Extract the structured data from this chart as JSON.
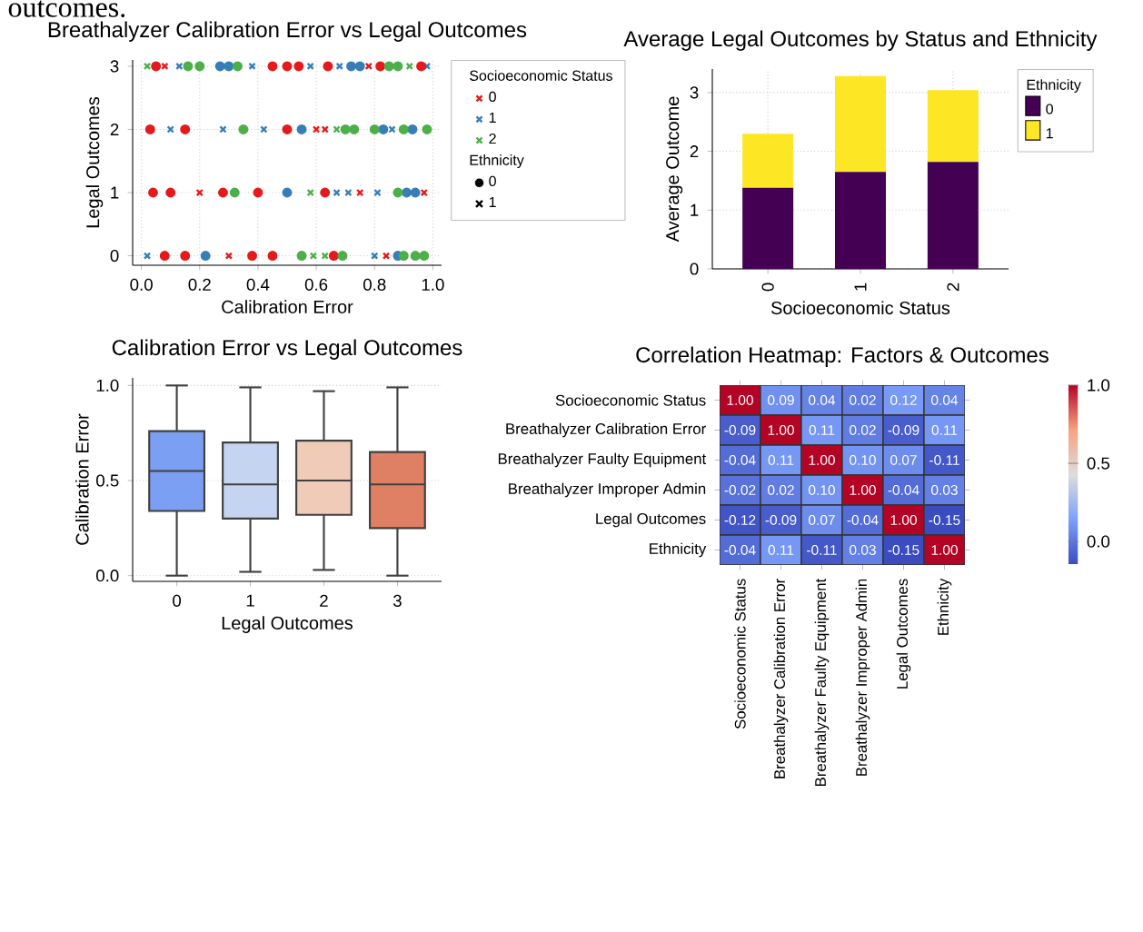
{
  "chart_data": [
    {
      "type": "scatter",
      "title": "Breathalyzer Calibration Error vs Legal Outcomes",
      "xlabel": "Calibration Error",
      "ylabel": "Legal Outcomes",
      "xlim": [
        -0.03,
        1.03
      ],
      "ylim": [
        -0.15,
        3.1
      ],
      "xticks": [
        {
          "value": 0,
          "label": "0.0"
        },
        {
          "value": 0.2,
          "label": "0.2"
        },
        {
          "value": 0.4,
          "label": "0.4"
        },
        {
          "value": 0.6,
          "label": "0.6"
        },
        {
          "value": 0.8,
          "label": "0.8"
        },
        {
          "value": 1,
          "label": "1.0"
        }
      ],
      "yticks": [
        0,
        1,
        2,
        3
      ],
      "grid": true,
      "legend": "right",
      "legend_title": "Socioeconomic Status",
      "annotations": [
        "outcomes.",
        "Ethnicity",
        "0",
        "1"
      ],
      "series": [
        {
          "name": "0",
          "color": "#e41a1c",
          "marker": "cross",
          "x": [
            0.08,
            0.78,
            0.6,
            0.63,
            0.2,
            0.75,
            0.97,
            0.3,
            0.84
          ],
          "values": [
            3,
            3,
            2,
            2,
            1,
            1,
            1,
            0,
            0
          ]
        },
        {
          "name": "1",
          "color": "#377eb8",
          "marker": "cross",
          "x": [
            0.13,
            0.38,
            0.58,
            0.68,
            0.98,
            0.1,
            0.28,
            0.42,
            0.86,
            0.67,
            0.71,
            0.81,
            0.02,
            0.8
          ],
          "values": [
            3,
            3,
            3,
            3,
            3,
            2,
            2,
            2,
            2,
            1,
            1,
            1,
            0,
            0
          ]
        },
        {
          "name": "2",
          "color": "#4daf4a",
          "marker": "cross",
          "x": [
            0.02,
            0.92,
            0.67,
            0.58,
            0.59,
            0.63
          ],
          "values": [
            3,
            3,
            2,
            1,
            0,
            0
          ]
        },
        {
          "color": "#e41a1c",
          "marker": "circle",
          "x": [
            0.05,
            0.45,
            0.5,
            0.54,
            0.64,
            0.82,
            0.96,
            0.03,
            0.15,
            0.5,
            0.04,
            0.1,
            0.28,
            0.4,
            0.63,
            0.08,
            0.15,
            0.38,
            0.45,
            0.66
          ],
          "values": [
            3,
            3,
            3,
            3,
            3,
            3,
            3,
            2,
            2,
            2,
            1,
            1,
            1,
            1,
            1,
            0,
            0,
            0,
            0,
            0
          ]
        },
        {
          "color": "#377eb8",
          "marker": "circle",
          "x": [
            0.27,
            0.3,
            0.72,
            0.75,
            0.55,
            0.83,
            0.93,
            0.5,
            0.91,
            0.94,
            0.22,
            0.88
          ],
          "values": [
            3,
            3,
            3,
            3,
            2,
            2,
            2,
            1,
            1,
            1,
            0,
            0
          ]
        },
        {
          "color": "#4daf4a",
          "marker": "circle",
          "x": [
            0.16,
            0.2,
            0.33,
            0.85,
            0.88,
            0.35,
            0.7,
            0.73,
            0.8,
            0.9,
            0.98,
            0.32,
            0.88,
            0.55,
            0.69,
            0.9,
            0.94,
            0.97
          ],
          "values": [
            3,
            3,
            3,
            3,
            3,
            2,
            2,
            2,
            2,
            2,
            2,
            1,
            1,
            0,
            0,
            0,
            0,
            0
          ]
        }
      ]
    },
    {
      "type": "bar",
      "stacked": true,
      "title": "Average Legal Outcomes by Status and Ethnicity",
      "xlabel": "Socioeconomic Status",
      "ylabel": "Average Outcome",
      "categories": [
        "0",
        "1",
        "2"
      ],
      "ylim": [
        0,
        3.4
      ],
      "yticks": [
        0,
        1,
        2,
        3
      ],
      "grid": true,
      "legend": "right",
      "legend_title": "Ethnicity",
      "series": [
        {
          "name": "0",
          "color": "#440154",
          "values": [
            1.38,
            1.65,
            1.82
          ]
        },
        {
          "name": "1",
          "color": "#fde725",
          "values": [
            0.92,
            1.63,
            1.22
          ]
        }
      ]
    },
    {
      "type": "box",
      "title": "Calibration Error vs Legal Outcomes",
      "xlabel": "Legal Outcomes",
      "ylabel": "Calibration Error",
      "categories": [
        "0",
        "1",
        "2",
        "3"
      ],
      "ylim": [
        -0.03,
        1.04
      ],
      "yticks": [
        {
          "value": 0,
          "label": "0.0"
        },
        {
          "value": 0.5,
          "label": "0.5"
        },
        {
          "value": 1,
          "label": "1.0"
        }
      ],
      "grid": "y",
      "colors": [
        "#7b9ff2",
        "#c5d5f1",
        "#efcbb8",
        "#df7f63"
      ],
      "boxes": [
        {
          "low": 0.0,
          "q1": 0.34,
          "median": 0.55,
          "q3": 0.76,
          "high": 1.0
        },
        {
          "low": 0.02,
          "q1": 0.3,
          "median": 0.48,
          "q3": 0.7,
          "high": 0.99
        },
        {
          "low": 0.03,
          "q1": 0.32,
          "median": 0.5,
          "q3": 0.71,
          "high": 0.97
        },
        {
          "low": 0.0,
          "q1": 0.25,
          "median": 0.48,
          "q3": 0.65,
          "high": 0.99
        }
      ]
    },
    {
      "type": "heatmap",
      "title": "Correlation Heatmap: Factors & Outcomes",
      "categories": [
        "Socioeconomic Status",
        "Breathalyzer Calibration Error",
        "Breathalyzer Faulty Equipment",
        "Breathalyzer Improper Admin",
        "Legal Outcomes",
        "Ethnicity"
      ],
      "y_categories": [
        "Socioeconomic Status",
        "Breathalyzer Calibration Error",
        "Breathalyzer Faulty Equipment",
        "Breathalyzer Improper Admin",
        "Legal Outcomes",
        "Ethnicity"
      ],
      "cells": [
        [
          1.0,
          0.09,
          0.04,
          0.02,
          0.12,
          0.04
        ],
        [
          -0.09,
          1.0,
          0.11,
          0.02,
          -0.09,
          0.11
        ],
        [
          -0.04,
          0.11,
          1.0,
          0.1,
          0.07,
          -0.11
        ],
        [
          -0.02,
          0.02,
          0.1,
          1.0,
          -0.04,
          0.03
        ],
        [
          -0.12,
          -0.09,
          0.07,
          -0.04,
          1.0,
          -0.15
        ],
        [
          -0.04,
          0.11,
          -0.11,
          0.03,
          -0.15,
          1.0
        ]
      ],
      "cell_labels": [
        [
          "1.00",
          "0.09",
          "0.04",
          "0.02",
          "0.12",
          "0.04"
        ],
        [
          "-0.09",
          "1.00",
          "0.11",
          "0.02",
          "-0.09",
          "0.11"
        ],
        [
          "-0.04",
          "0.11",
          "1.00",
          "0.10",
          "0.07",
          "-0.11"
        ],
        [
          "-0.02",
          "0.02",
          "0.10",
          "1.00",
          "-0.04",
          "0.03"
        ],
        [
          "-0.12",
          "-0.09",
          "0.07",
          "-0.04",
          "1.00",
          "-0.15"
        ],
        [
          "-0.04",
          "0.11",
          "-0.11",
          "0.03",
          "-0.15",
          "1.00"
        ]
      ],
      "clim": [
        -0.15,
        1.0
      ],
      "cticks": [
        {
          "value": 0,
          "label": "0.0"
        },
        {
          "value": 0.5,
          "label": "0.5"
        },
        {
          "value": 1,
          "label": "1.0"
        }
      ]
    }
  ]
}
